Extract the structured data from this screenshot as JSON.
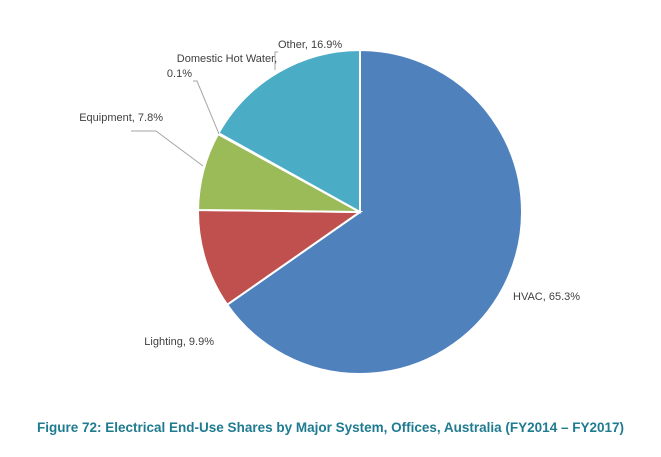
{
  "chart_data": {
    "type": "pie",
    "title": "",
    "slices": [
      {
        "label": "HVAC",
        "value": 65.3,
        "value_text": "65.3%",
        "color": "#4f81bd"
      },
      {
        "label": "Lighting",
        "value": 9.9,
        "value_text": "9.9%",
        "color": "#c0504d"
      },
      {
        "label": "Equipment",
        "value": 7.8,
        "value_text": "7.8%",
        "color": "#9bbb59"
      },
      {
        "label": "Domestic Hot Water",
        "value": 0.1,
        "value_text": "0.1%",
        "color": "#8064a2"
      },
      {
        "label": "Other",
        "value": 16.9,
        "value_text": "16.9%",
        "color": "#4bacc6"
      }
    ],
    "start": "12 o'clock",
    "direction": "clockwise",
    "legend": "none"
  },
  "caption": "Figure 72:  Electrical End-Use Shares by Major System, Offices, Australia (FY2014 – FY2017)"
}
